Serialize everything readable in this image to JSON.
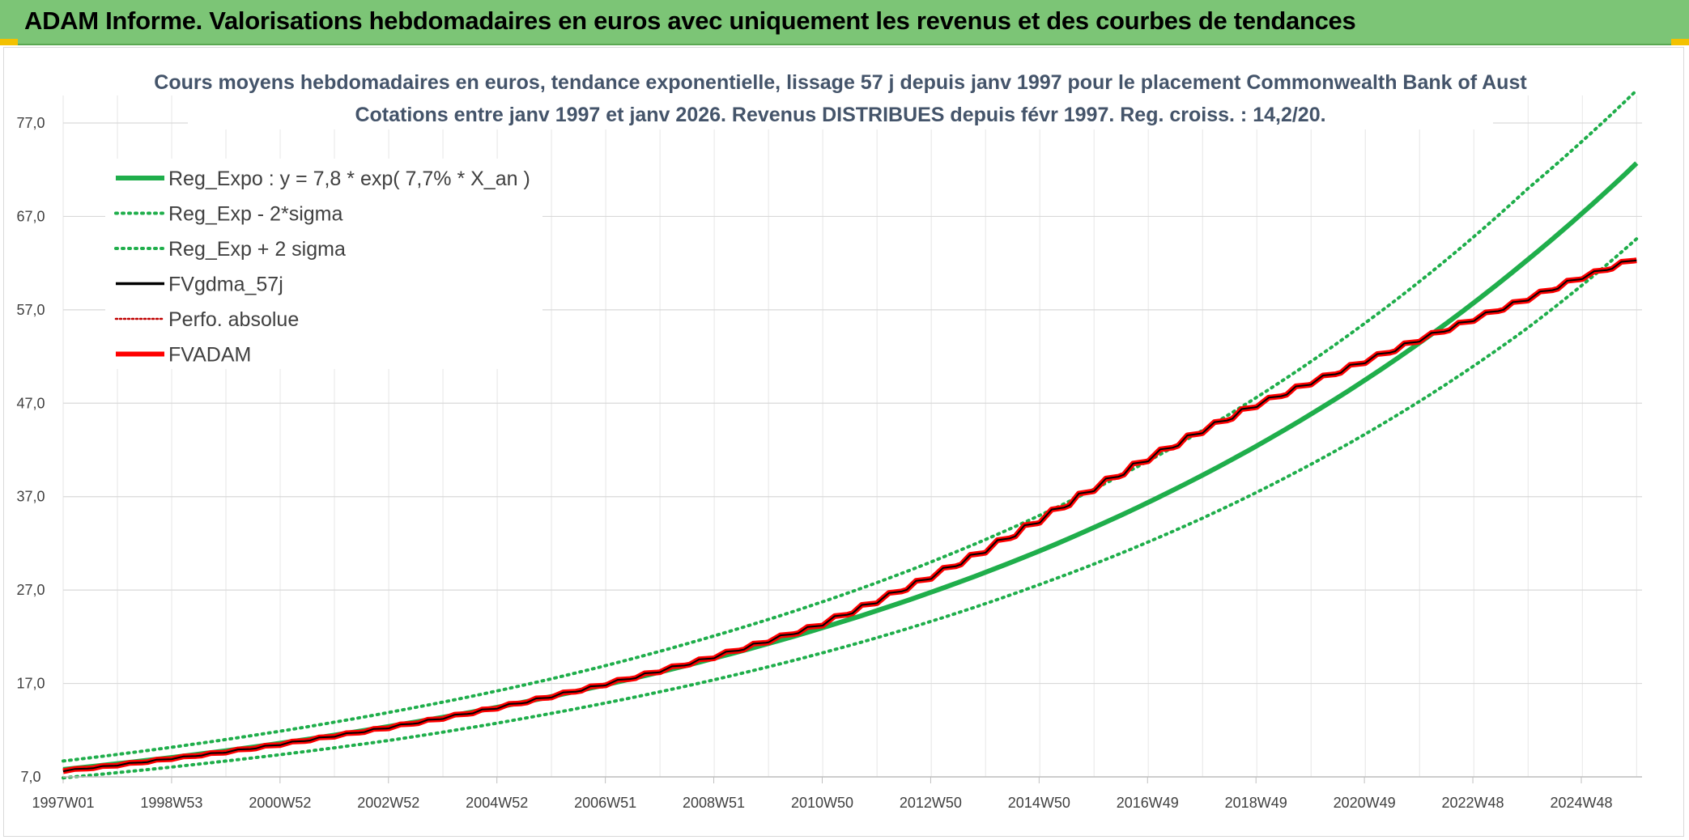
{
  "header": {
    "title": "ADAM Informe. Valorisations hebdomadaires en euros avec uniquement les revenus et des courbes de tendances"
  },
  "colors": {
    "banner": "#7cc576",
    "reg_expo": "#1fae4b",
    "sigma": "#1fae4b",
    "fvgdma": "#000000",
    "perfo": "#c00000",
    "fvadam": "#ff0000",
    "grid": "#d9d9d9"
  },
  "chart_data": {
    "type": "line",
    "title": [
      "Cours moyens hebdomadaires en euros, tendance exponentielle, lissage 57 j depuis janv 1997 pour le placement Commonwealth Bank of Aust",
      "Cotations entre janv 1997 et janv 2026. Revenus DISTRIBUES depuis févr 1997. Reg. croiss. : 14,2/20."
    ],
    "xlabel": "",
    "ylabel": "",
    "ylim": [
      7,
      80
    ],
    "y_ticks": [
      "77,0",
      "67,0",
      "57,0",
      "47,0",
      "37,0",
      "27,0",
      "17,0",
      "7,0"
    ],
    "x_ticks": [
      "1997W01",
      "1998W53",
      "2000W52",
      "2002W52",
      "2004W52",
      "2006W51",
      "2008W51",
      "2010W50",
      "2012W50",
      "2014W50",
      "2016W49",
      "2018W49",
      "2020W49",
      "2022W48",
      "2024W48"
    ],
    "xlim_years": [
      1997.0,
      2026.1
    ],
    "grid": true,
    "legend_position": "top-left",
    "series": [
      {
        "name": "Reg_Expo : y = 7,8 * exp( 7,7% *  X_an )",
        "key": "reg_expo",
        "style": "solid-thick",
        "formula": {
          "a": 7.8,
          "rate": 0.077
        },
        "x": [
          1997,
          2000,
          2003,
          2006,
          2009,
          2012,
          2015,
          2018,
          2021,
          2024,
          2026
        ],
        "values": [
          7.8,
          9.8,
          12.4,
          15.6,
          19.7,
          24.8,
          31.2,
          39.3,
          49.5,
          62.4,
          72.7
        ]
      },
      {
        "name": "Reg_Exp - 2*sigma",
        "key": "reg_minus",
        "style": "dotted",
        "x": [
          1997,
          2000,
          2003,
          2006,
          2009,
          2012,
          2015,
          2018,
          2021,
          2024,
          2026
        ],
        "values": [
          6.9,
          8.7,
          10.9,
          13.8,
          17.4,
          21.9,
          27.6,
          34.7,
          43.7,
          55.1,
          64.6
        ]
      },
      {
        "name": "Reg_Exp + 2 sigma",
        "key": "reg_plus",
        "style": "dotted",
        "x": [
          1997,
          2000,
          2003,
          2006,
          2009,
          2012,
          2015,
          2018,
          2021,
          2024,
          2026
        ],
        "values": [
          8.7,
          11.0,
          13.9,
          17.5,
          22.1,
          27.8,
          35.0,
          44.1,
          55.6,
          70.0,
          80.5
        ]
      },
      {
        "name": "FVgdma_57j",
        "key": "fvgdma",
        "style": "solid",
        "x": [
          1997,
          1998,
          1999,
          2000,
          2001,
          2002,
          2003,
          2004,
          2005,
          2006,
          2007,
          2008,
          2009,
          2010,
          2011,
          2012,
          2013,
          2014,
          2015,
          2016,
          2017,
          2018,
          2019,
          2020,
          2021,
          2022,
          2023,
          2024,
          2025,
          2026
        ],
        "values": [
          7.6,
          8.2,
          8.9,
          9.6,
          10.4,
          11.3,
          12.2,
          13.2,
          14.3,
          15.5,
          16.8,
          18.2,
          19.7,
          21.4,
          23.2,
          25.6,
          28.2,
          31.0,
          34.2,
          37.6,
          40.8,
          43.8,
          46.6,
          49.0,
          51.3,
          53.6,
          55.8,
          58.0,
          60.3,
          62.3
        ]
      },
      {
        "name": "Perfo. absolue",
        "key": "perfo",
        "style": "dotted-red",
        "x": [
          1997,
          1998,
          1999,
          2000,
          2001,
          2002,
          2003,
          2004,
          2005,
          2006,
          2007,
          2008,
          2009,
          2010,
          2011,
          2012,
          2013,
          2014,
          2015,
          2016,
          2017,
          2018,
          2019,
          2020,
          2021,
          2022,
          2023,
          2024,
          2025,
          2026
        ],
        "values": [
          7.6,
          8.2,
          8.9,
          9.6,
          10.4,
          11.3,
          12.2,
          13.2,
          14.3,
          15.5,
          16.8,
          18.2,
          19.7,
          21.4,
          23.2,
          25.6,
          28.2,
          31.0,
          34.2,
          37.6,
          40.8,
          43.8,
          46.6,
          49.0,
          51.3,
          53.6,
          55.8,
          58.0,
          60.3,
          62.3
        ]
      },
      {
        "name": "FVADAM",
        "key": "fvadam",
        "style": "solid-thick-stepped",
        "x": [
          1997,
          1998,
          1999,
          2000,
          2001,
          2002,
          2003,
          2004,
          2005,
          2006,
          2007,
          2008,
          2009,
          2010,
          2011,
          2012,
          2013,
          2014,
          2015,
          2016,
          2017,
          2018,
          2019,
          2020,
          2021,
          2022,
          2023,
          2024,
          2025,
          2026
        ],
        "values": [
          7.6,
          8.2,
          8.9,
          9.6,
          10.4,
          11.3,
          12.2,
          13.2,
          14.3,
          15.5,
          16.8,
          18.2,
          19.7,
          21.4,
          23.2,
          25.6,
          28.2,
          31.0,
          34.2,
          37.6,
          40.8,
          43.8,
          46.6,
          49.0,
          51.3,
          53.6,
          55.8,
          58.0,
          60.3,
          62.3
        ]
      }
    ]
  }
}
